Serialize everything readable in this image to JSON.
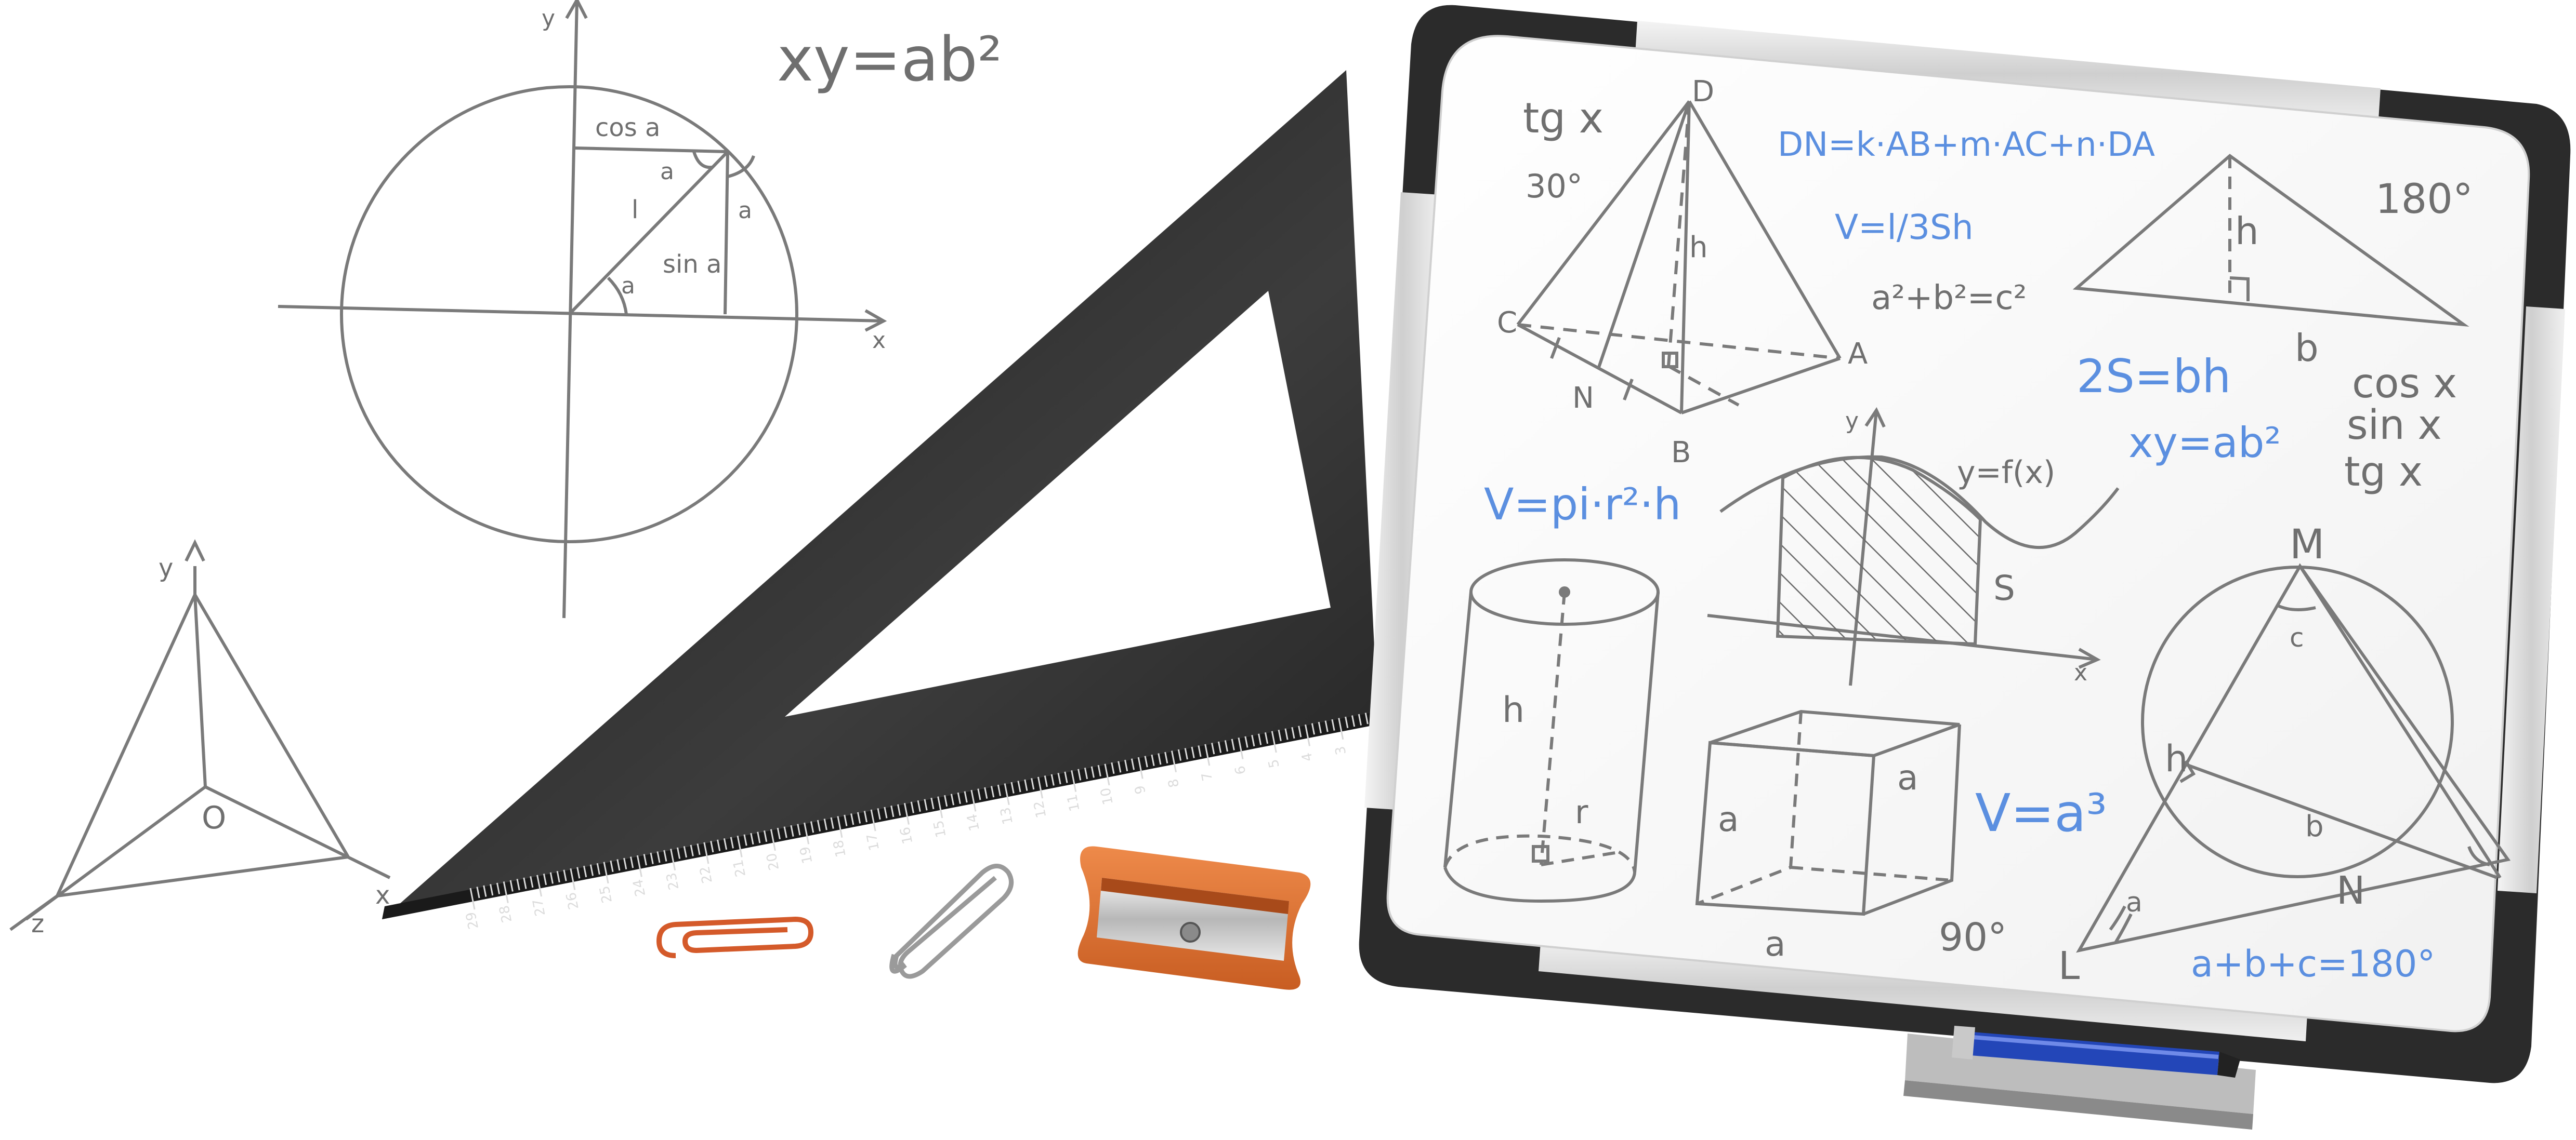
{
  "sketch": {
    "formula_top": "xy=ab²",
    "unit_circle": {
      "y_label": "y",
      "x_label": "x",
      "cos_label": "cos a",
      "sin_label": "sin a",
      "radius_label": "l",
      "angle_label_1": "a",
      "angle_label_2": "a",
      "angle_label_3": "a"
    },
    "tripod": {
      "y_label": "y",
      "x_label": "x",
      "z_label": "z",
      "origin_label": "O"
    }
  },
  "ruler": {
    "ticks": [
      "29",
      "28",
      "27",
      "26",
      "25",
      "24",
      "23",
      "22",
      "21",
      "20",
      "19",
      "18",
      "17",
      "16",
      "15",
      "14",
      "13",
      "12",
      "11",
      "10",
      "9",
      "8",
      "7",
      "6",
      "5",
      "4",
      "3",
      "2"
    ]
  },
  "whiteboard": {
    "tg_x": "tg x",
    "deg_30": "30°",
    "pyramid": {
      "D": "D",
      "C": "C",
      "N": "N",
      "B": "B",
      "A": "A",
      "h": "h"
    },
    "vector_formula": "DN=k·AB+m·AC+n·DA",
    "volume_pyramid": "V=l/3Sh",
    "pythagoras": "a²+b²=c²",
    "triangle": {
      "h": "h",
      "b": "b",
      "deg": "180°"
    },
    "area_formula": "2S=bh",
    "xy_formula": "xy=ab²",
    "trig_list": [
      "cos x",
      "sin x",
      "tg x"
    ],
    "cylinder_formula": "V=pi·r²·h",
    "cylinder": {
      "h": "h",
      "r": "r"
    },
    "graph": {
      "y": "y",
      "x": "x",
      "fx": "y=f(x)",
      "S": "S"
    },
    "cube": {
      "a1": "a",
      "a2": "a",
      "a3": "a"
    },
    "cube_formula": "V=a³",
    "deg_90": "90°",
    "circle_triangle": {
      "M": "M",
      "c": "c",
      "h": "h",
      "b": "b",
      "N": "N",
      "a": "a",
      "L": "L"
    },
    "angle_sum": "a+b+c=180°"
  },
  "colors": {
    "pencil": "#737373",
    "marker_blue": "#5b8fe0",
    "ruler": "#2a2a2a",
    "clip_orange": "#d45a2a",
    "sharpener": "#e07838",
    "board_frame": "#2b2b2b"
  },
  "objects": {
    "clip_1_icon": "paperclip-icon",
    "clip_2_icon": "paperclip-icon",
    "sharpener_icon": "sharpener-icon",
    "marker_icon": "marker-icon"
  }
}
